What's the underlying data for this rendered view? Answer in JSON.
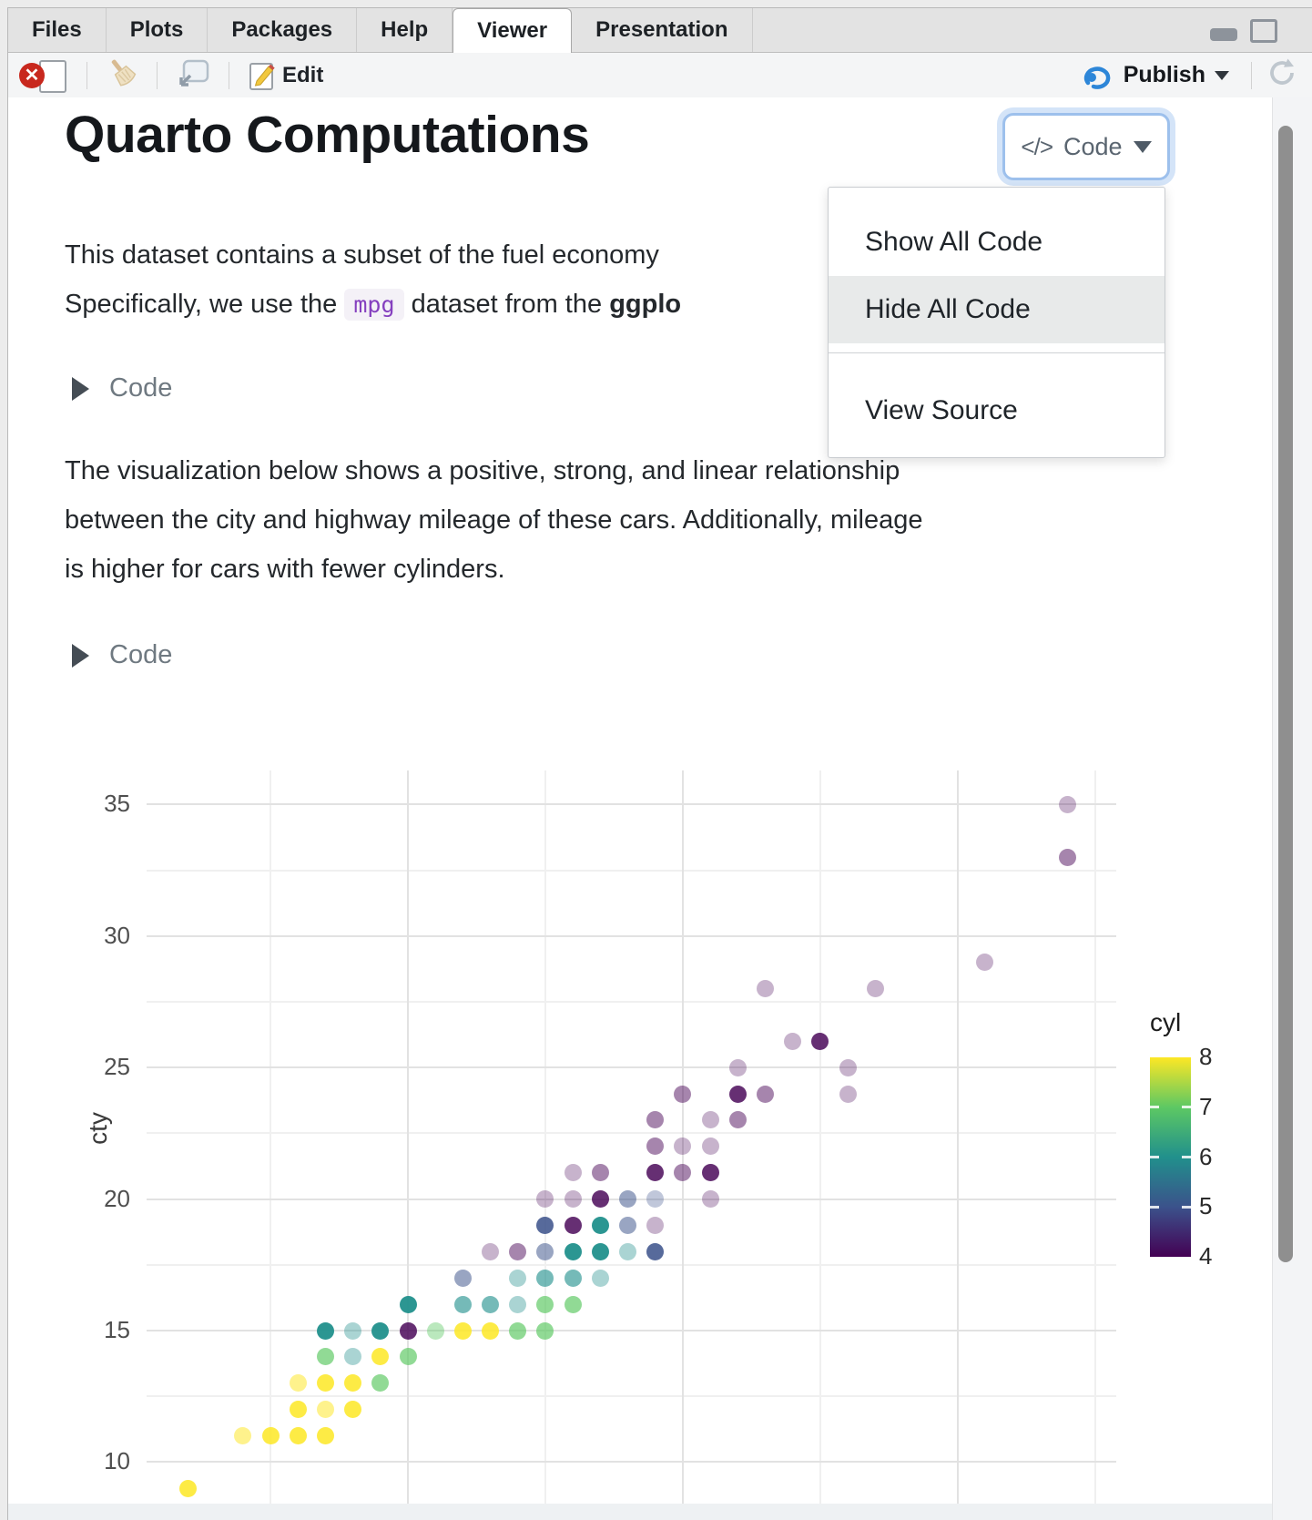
{
  "window": {
    "tabs": [
      "Files",
      "Plots",
      "Packages",
      "Help",
      "Viewer",
      "Presentation"
    ],
    "active_tab": "Viewer"
  },
  "toolbar": {
    "edit_label": "Edit",
    "publish_label": "Publish"
  },
  "page": {
    "title": "Quarto Computations",
    "code_button_glyph": "</>",
    "code_button_label": "Code",
    "menu": {
      "items": [
        "Show All Code",
        "Hide All Code",
        "View Source"
      ],
      "highlighted": "Hide All Code"
    },
    "p1_line1": "This dataset contains a subset of the fuel economy",
    "p1_line2_a": "Specifically, we use the",
    "p1_code": "mpg",
    "p1_line2_b": "dataset from the",
    "p1_line2_bold": "ggplo",
    "fold1_label": "Code",
    "fold2_label": "Code",
    "p2_lines": [
      "The visualization below shows a positive, strong, and linear relationship",
      "between the city and highway mileage of these cars. Additionally, mileage",
      "is higher for cars with fewer cylinders."
    ]
  },
  "chart_data": {
    "type": "scatter",
    "title": "",
    "xlabel": "",
    "ylabel": "cty",
    "legend_title": "cyl",
    "legend_ticks": [
      8,
      7,
      6,
      5,
      4
    ],
    "legend_range": [
      4,
      8
    ],
    "y_ticks": [
      35,
      30,
      25,
      20,
      15,
      10
    ],
    "y_minor": [
      32.5,
      27.5,
      22.5,
      17.5,
      12.5
    ],
    "x_major": [
      20,
      30,
      40
    ],
    "x_minor": [
      15,
      25,
      35,
      45
    ],
    "xlim": [
      10.4,
      45.6
    ],
    "ylim": [
      7.7,
      36.3
    ],
    "grid": true,
    "legend_position": "right",
    "viridis": {
      "4": "#440154",
      "5": "#3b528b",
      "6": "#21908c",
      "7": "#5dc863",
      "8": "#fde725"
    },
    "points_format": [
      "hwy",
      "cty",
      "cyl",
      "shade(-1 pale, 0 normal, 1 dark-overlap)"
    ],
    "points": [
      [
        12,
        9,
        8,
        0
      ],
      [
        14,
        11,
        8,
        -1
      ],
      [
        15,
        11,
        8,
        0
      ],
      [
        16,
        11,
        8,
        0
      ],
      [
        17,
        11,
        8,
        0
      ],
      [
        16,
        12,
        8,
        0
      ],
      [
        17,
        12,
        8,
        -1
      ],
      [
        18,
        12,
        8,
        0
      ],
      [
        16,
        13,
        8,
        -1
      ],
      [
        17,
        13,
        8,
        0
      ],
      [
        18,
        13,
        8,
        0
      ],
      [
        19,
        13,
        7,
        0
      ],
      [
        17,
        14,
        7,
        0
      ],
      [
        18,
        14,
        6,
        -1
      ],
      [
        19,
        14,
        8,
        0
      ],
      [
        20,
        14,
        7,
        0
      ],
      [
        17,
        15,
        6,
        1
      ],
      [
        18,
        15,
        6,
        -1
      ],
      [
        19,
        15,
        6,
        1
      ],
      [
        20,
        15,
        4,
        1
      ],
      [
        21,
        15,
        7,
        -1
      ],
      [
        22,
        15,
        8,
        0
      ],
      [
        23,
        15,
        8,
        0
      ],
      [
        24,
        15,
        7,
        0
      ],
      [
        25,
        15,
        7,
        0
      ],
      [
        20,
        16,
        6,
        1
      ],
      [
        22,
        16,
        6,
        0
      ],
      [
        23,
        16,
        6,
        0
      ],
      [
        24,
        16,
        6,
        -1
      ],
      [
        25,
        16,
        7,
        0
      ],
      [
        26,
        16,
        7,
        0
      ],
      [
        22,
        17,
        5,
        0
      ],
      [
        24,
        17,
        6,
        -1
      ],
      [
        25,
        17,
        6,
        0
      ],
      [
        26,
        17,
        6,
        0
      ],
      [
        27,
        17,
        6,
        -1
      ],
      [
        23,
        18,
        4,
        -1
      ],
      [
        24,
        18,
        4,
        0
      ],
      [
        25,
        18,
        5,
        0
      ],
      [
        26,
        18,
        6,
        1
      ],
      [
        27,
        18,
        6,
        1
      ],
      [
        28,
        18,
        6,
        -1
      ],
      [
        29,
        18,
        5,
        1
      ],
      [
        25,
        19,
        5,
        1
      ],
      [
        26,
        19,
        4,
        1
      ],
      [
        27,
        19,
        6,
        1
      ],
      [
        28,
        19,
        5,
        0
      ],
      [
        29,
        19,
        4,
        -1
      ],
      [
        25,
        20,
        4,
        -1
      ],
      [
        26,
        20,
        4,
        -1
      ],
      [
        27,
        20,
        4,
        1
      ],
      [
        28,
        20,
        5,
        0
      ],
      [
        29,
        20,
        5,
        -1
      ],
      [
        31,
        20,
        4,
        -1
      ],
      [
        26,
        21,
        4,
        -1
      ],
      [
        27,
        21,
        4,
        0
      ],
      [
        29,
        21,
        4,
        1
      ],
      [
        30,
        21,
        4,
        0
      ],
      [
        31,
        21,
        4,
        1
      ],
      [
        29,
        22,
        4,
        0
      ],
      [
        30,
        22,
        4,
        -1
      ],
      [
        31,
        22,
        4,
        -1
      ],
      [
        29,
        23,
        4,
        0
      ],
      [
        31,
        23,
        4,
        -1
      ],
      [
        32,
        23,
        4,
        0
      ],
      [
        30,
        24,
        4,
        0
      ],
      [
        32,
        24,
        4,
        1
      ],
      [
        33,
        24,
        4,
        0
      ],
      [
        36,
        24,
        4,
        -1
      ],
      [
        32,
        25,
        4,
        -1
      ],
      [
        36,
        25,
        4,
        -1
      ],
      [
        34,
        26,
        4,
        -1
      ],
      [
        35,
        26,
        4,
        1
      ],
      [
        33,
        28,
        4,
        -1
      ],
      [
        37,
        28,
        4,
        -1
      ],
      [
        41,
        29,
        4,
        -1
      ],
      [
        44,
        33,
        4,
        0
      ],
      [
        44,
        35,
        4,
        -1
      ]
    ]
  },
  "colors": {
    "accent_blue": "#2d86d8",
    "focus_ring": "#d4e4f8",
    "menu_highlight": "#e8eaea",
    "code_text": "#8540bf",
    "stop_red": "#c8281e"
  }
}
